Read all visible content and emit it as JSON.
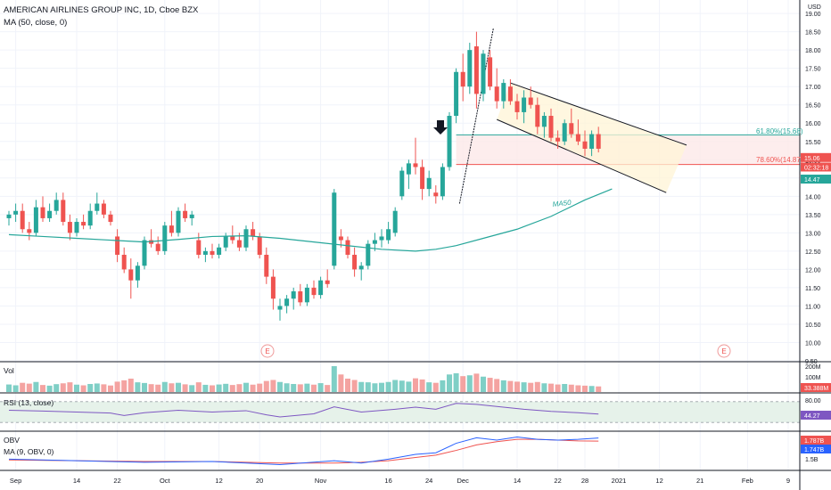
{
  "header": {
    "title": "AMERICAN AIRLINES GROUP INC, 1D, Cboe BZX",
    "ma_label": "MA (50, close, 0)",
    "currency": "USD"
  },
  "price_axis": {
    "ticks": [
      "19.00",
      "18.50",
      "18.00",
      "17.50",
      "17.00",
      "16.50",
      "16.00",
      "15.50",
      "15.00",
      "14.50",
      "14.00",
      "13.50",
      "13.00",
      "12.50",
      "12.00",
      "11.50",
      "11.00",
      "10.50",
      "10.00",
      "9.50"
    ],
    "badges": [
      {
        "text": "15.06",
        "color": "#ef5350",
        "price": 15.06
      },
      {
        "text": "02:32:18",
        "color": "#ef5350",
        "price": 14.8
      },
      {
        "text": "14.47",
        "color": "#26a69a",
        "price": 14.47
      }
    ]
  },
  "x_axis": {
    "ticks": [
      {
        "label": "Sep",
        "idx": 1
      },
      {
        "label": "14",
        "idx": 10
      },
      {
        "label": "22",
        "idx": 16
      },
      {
        "label": "Oct",
        "idx": 23
      },
      {
        "label": "12",
        "idx": 31
      },
      {
        "label": "20",
        "idx": 37
      },
      {
        "label": "Nov",
        "idx": 46
      },
      {
        "label": "16",
        "idx": 56
      },
      {
        "label": "24",
        "idx": 62
      },
      {
        "label": "Dec",
        "idx": 67
      },
      {
        "label": "14",
        "idx": 75
      },
      {
        "label": "22",
        "idx": 81
      },
      {
        "label": "28",
        "idx": 85
      },
      {
        "label": "2021",
        "idx": 90
      },
      {
        "label": "12",
        "idx": 96
      },
      {
        "label": "21",
        "idx": 102
      },
      {
        "label": "Feb",
        "idx": 109
      },
      {
        "label": "9",
        "idx": 115
      }
    ]
  },
  "annotations": {
    "fib_618": "61.80%(15.68)",
    "fib_786": "78.60%(14.87)",
    "ma_tag": "MA50",
    "earnings": [
      "E",
      "E"
    ]
  },
  "colors": {
    "up": "#26a69a",
    "down": "#ef5350",
    "ma": "#26a69a",
    "rsi": "#7e57c2",
    "obv": "#2962ff",
    "obv_ma": "#ef5350",
    "channel": "#131722"
  },
  "volume_panel": {
    "label": "Vol",
    "ticks": [
      "200M",
      "100M"
    ],
    "badge": "33.388M",
    "badge_color": "#ef5350"
  },
  "rsi_panel": {
    "label": "RSI (13, close)",
    "ticks": [
      "80.00"
    ],
    "badge": "44.27",
    "badge_color": "#7e57c2"
  },
  "obv_panel": {
    "label_obv": "OBV",
    "label_ma": "MA (9, OBV, 0)",
    "ticks": [
      "1.5B"
    ],
    "badge_obv": "1.787B",
    "badge_ma": "1.747B"
  },
  "chart_data": {
    "type": "candlestick",
    "title": "AMERICAN AIRLINES GROUP INC, 1D, Cboe BZX",
    "ylim": [
      9.5,
      19.1
    ],
    "x_range": [
      0,
      123
    ],
    "candles": [
      [
        0,
        13.4,
        13.6,
        13.2,
        13.5
      ],
      [
        1,
        13.5,
        13.8,
        13.3,
        13.6
      ],
      [
        2,
        13.6,
        13.8,
        13.0,
        13.1
      ],
      [
        3,
        13.1,
        13.3,
        12.8,
        13.0
      ],
      [
        4,
        13.0,
        13.9,
        12.9,
        13.7
      ],
      [
        5,
        13.7,
        14.0,
        13.3,
        13.4
      ],
      [
        6,
        13.4,
        13.8,
        13.3,
        13.6
      ],
      [
        7,
        13.6,
        14.1,
        13.5,
        13.9
      ],
      [
        8,
        13.9,
        14.1,
        13.2,
        13.3
      ],
      [
        9,
        13.3,
        13.5,
        12.8,
        13.0
      ],
      [
        10,
        13.0,
        13.4,
        12.9,
        13.3
      ],
      [
        11,
        13.3,
        13.5,
        13.1,
        13.2
      ],
      [
        12,
        13.2,
        13.8,
        13.1,
        13.6
      ],
      [
        13,
        13.6,
        14.1,
        13.5,
        13.8
      ],
      [
        14,
        13.8,
        13.9,
        13.4,
        13.5
      ],
      [
        15,
        13.5,
        13.6,
        13.2,
        13.3
      ],
      [
        16,
        12.9,
        13.1,
        12.2,
        12.4
      ],
      [
        17,
        12.4,
        12.6,
        11.9,
        12.0
      ],
      [
        18,
        12.0,
        12.3,
        11.2,
        11.7
      ],
      [
        19,
        11.7,
        12.2,
        11.5,
        12.1
      ],
      [
        20,
        12.1,
        12.9,
        12.0,
        12.8
      ],
      [
        21,
        12.8,
        13.1,
        12.6,
        12.7
      ],
      [
        22,
        12.7,
        12.9,
        12.4,
        12.5
      ],
      [
        23,
        12.5,
        13.3,
        12.4,
        13.2
      ],
      [
        24,
        13.2,
        13.6,
        12.9,
        13.0
      ],
      [
        25,
        13.0,
        13.7,
        12.9,
        13.6
      ],
      [
        26,
        13.6,
        13.8,
        13.3,
        13.4
      ],
      [
        27,
        13.4,
        13.6,
        13.2,
        13.5
      ],
      [
        28,
        12.8,
        13.0,
        12.3,
        12.4
      ],
      [
        29,
        12.4,
        12.6,
        12.2,
        12.5
      ],
      [
        30,
        12.5,
        12.7,
        12.3,
        12.4
      ],
      [
        31,
        12.4,
        12.7,
        12.3,
        12.6
      ],
      [
        32,
        12.6,
        13.0,
        12.5,
        12.9
      ],
      [
        33,
        12.9,
        13.2,
        12.7,
        12.8
      ],
      [
        34,
        12.8,
        13.0,
        12.5,
        12.6
      ],
      [
        35,
        12.6,
        13.2,
        12.5,
        13.1
      ],
      [
        36,
        13.1,
        13.3,
        12.8,
        12.9
      ],
      [
        37,
        12.9,
        13.0,
        12.3,
        12.4
      ],
      [
        38,
        12.4,
        12.6,
        11.6,
        11.8
      ],
      [
        39,
        11.8,
        12.0,
        10.9,
        11.2
      ],
      [
        40,
        10.9,
        11.2,
        10.6,
        11.0
      ],
      [
        41,
        11.0,
        11.3,
        10.8,
        11.2
      ],
      [
        42,
        11.2,
        11.5,
        10.9,
        11.4
      ],
      [
        43,
        11.4,
        11.6,
        11.0,
        11.1
      ],
      [
        44,
        11.1,
        11.6,
        11.0,
        11.5
      ],
      [
        45,
        11.5,
        11.7,
        11.2,
        11.3
      ],
      [
        46,
        11.3,
        11.8,
        11.2,
        11.7
      ],
      [
        47,
        11.7,
        12.0,
        11.5,
        11.6
      ],
      [
        48,
        12.1,
        14.2,
        12.0,
        14.1
      ],
      [
        49,
        12.9,
        13.1,
        12.6,
        12.8
      ],
      [
        50,
        12.8,
        12.9,
        12.3,
        12.4
      ],
      [
        51,
        12.4,
        12.6,
        11.8,
        12.0
      ],
      [
        52,
        12.0,
        12.2,
        11.7,
        12.1
      ],
      [
        53,
        12.1,
        12.8,
        12.0,
        12.7
      ],
      [
        54,
        12.7,
        13.0,
        12.5,
        12.8
      ],
      [
        55,
        12.8,
        13.1,
        12.6,
        12.9
      ],
      [
        56,
        12.8,
        13.3,
        12.7,
        13.1
      ],
      [
        57,
        13.0,
        13.7,
        12.9,
        13.6
      ],
      [
        58,
        14.0,
        14.8,
        13.9,
        14.7
      ],
      [
        59,
        14.6,
        15.0,
        14.2,
        14.9
      ],
      [
        60,
        14.9,
        15.6,
        14.6,
        14.8
      ],
      [
        61,
        14.8,
        15.0,
        13.9,
        14.2
      ],
      [
        62,
        14.2,
        14.7,
        14.0,
        14.5
      ],
      [
        63,
        14.1,
        14.3,
        13.8,
        14.0
      ],
      [
        64,
        14.0,
        14.9,
        13.9,
        14.8
      ],
      [
        65,
        14.8,
        16.3,
        14.7,
        16.2
      ],
      [
        66,
        16.2,
        17.5,
        16.0,
        17.4
      ],
      [
        67,
        17.4,
        17.9,
        16.6,
        17.0
      ],
      [
        68,
        17.0,
        18.2,
        16.8,
        18.0
      ],
      [
        69,
        18.1,
        18.5,
        16.4,
        16.8
      ],
      [
        70,
        16.8,
        18.0,
        16.6,
        17.9
      ],
      [
        71,
        17.8,
        18.0,
        16.9,
        17.0
      ],
      [
        72,
        17.0,
        17.5,
        16.4,
        16.6
      ],
      [
        73,
        16.6,
        17.2,
        16.4,
        17.1
      ],
      [
        74,
        17.0,
        17.2,
        16.5,
        16.6
      ],
      [
        75,
        16.6,
        16.8,
        16.1,
        16.3
      ],
      [
        76,
        16.3,
        16.9,
        16.0,
        16.7
      ],
      [
        77,
        16.7,
        17.0,
        16.4,
        16.5
      ],
      [
        78,
        16.5,
        16.7,
        15.7,
        15.9
      ],
      [
        79,
        15.9,
        16.3,
        15.6,
        16.2
      ],
      [
        80,
        16.2,
        16.4,
        15.5,
        15.6
      ],
      [
        81,
        15.6,
        15.8,
        15.3,
        15.5
      ],
      [
        82,
        15.5,
        16.1,
        15.4,
        16.0
      ],
      [
        83,
        16.0,
        16.4,
        15.6,
        15.7
      ],
      [
        84,
        15.7,
        16.1,
        15.4,
        15.5
      ],
      [
        85,
        15.5,
        15.8,
        15.1,
        15.3
      ],
      [
        86,
        15.3,
        15.8,
        15.1,
        15.7
      ],
      [
        87,
        15.7,
        15.9,
        15.2,
        15.3
      ]
    ],
    "ma50": [
      [
        0,
        12.95
      ],
      [
        5,
        12.9
      ],
      [
        10,
        12.85
      ],
      [
        15,
        12.8
      ],
      [
        20,
        12.75
      ],
      [
        25,
        12.82
      ],
      [
        30,
        12.9
      ],
      [
        35,
        12.92
      ],
      [
        40,
        12.85
      ],
      [
        45,
        12.75
      ],
      [
        50,
        12.65
      ],
      [
        55,
        12.55
      ],
      [
        60,
        12.5
      ],
      [
        63,
        12.55
      ],
      [
        66,
        12.65
      ],
      [
        70,
        12.85
      ],
      [
        75,
        13.1
      ],
      [
        80,
        13.45
      ],
      [
        85,
        13.9
      ],
      [
        89,
        14.2
      ]
    ],
    "fib_levels": [
      {
        "label": "61.80%(15.68)",
        "value": 15.68
      },
      {
        "label": "78.60%(14.87)",
        "value": 14.87
      }
    ],
    "volume_in_millions": [
      [
        0,
        45
      ],
      [
        1,
        40
      ],
      [
        2,
        55
      ],
      [
        3,
        50
      ],
      [
        4,
        60
      ],
      [
        5,
        42
      ],
      [
        6,
        38
      ],
      [
        7,
        47
      ],
      [
        8,
        52
      ],
      [
        9,
        58
      ],
      [
        10,
        44
      ],
      [
        11,
        40
      ],
      [
        12,
        48
      ],
      [
        13,
        51
      ],
      [
        14,
        46
      ],
      [
        15,
        39
      ],
      [
        16,
        62
      ],
      [
        17,
        70
      ],
      [
        18,
        80
      ],
      [
        19,
        58
      ],
      [
        20,
        54
      ],
      [
        21,
        47
      ],
      [
        22,
        44
      ],
      [
        23,
        60
      ],
      [
        24,
        52
      ],
      [
        25,
        55
      ],
      [
        26,
        46
      ],
      [
        27,
        41
      ],
      [
        28,
        58
      ],
      [
        29,
        43
      ],
      [
        30,
        40
      ],
      [
        31,
        45
      ],
      [
        32,
        49
      ],
      [
        33,
        42
      ],
      [
        34,
        47
      ],
      [
        35,
        55
      ],
      [
        36,
        44
      ],
      [
        37,
        50
      ],
      [
        38,
        66
      ],
      [
        39,
        72
      ],
      [
        40,
        60
      ],
      [
        41,
        52
      ],
      [
        42,
        48
      ],
      [
        43,
        46
      ],
      [
        44,
        50
      ],
      [
        45,
        44
      ],
      [
        46,
        53
      ],
      [
        47,
        42
      ],
      [
        48,
        155
      ],
      [
        49,
        105
      ],
      [
        50,
        80
      ],
      [
        51,
        72
      ],
      [
        52,
        60
      ],
      [
        53,
        58
      ],
      [
        54,
        52
      ],
      [
        55,
        55
      ],
      [
        56,
        60
      ],
      [
        57,
        72
      ],
      [
        58,
        68
      ],
      [
        59,
        62
      ],
      [
        60,
        82
      ],
      [
        61,
        75
      ],
      [
        62,
        58
      ],
      [
        63,
        55
      ],
      [
        64,
        70
      ],
      [
        65,
        105
      ],
      [
        66,
        112
      ],
      [
        67,
        95
      ],
      [
        68,
        100
      ],
      [
        69,
        110
      ],
      [
        70,
        92
      ],
      [
        71,
        85
      ],
      [
        72,
        78
      ],
      [
        73,
        70
      ],
      [
        74,
        66
      ],
      [
        75,
        62
      ],
      [
        76,
        58
      ],
      [
        77,
        55
      ],
      [
        78,
        60
      ],
      [
        79,
        52
      ],
      [
        80,
        50
      ],
      [
        81,
        45
      ],
      [
        82,
        48
      ],
      [
        83,
        44
      ],
      [
        84,
        40
      ],
      [
        85,
        38
      ],
      [
        86,
        36
      ],
      [
        87,
        33.4
      ]
    ],
    "rsi": [
      [
        0,
        55
      ],
      [
        5,
        53
      ],
      [
        10,
        50
      ],
      [
        15,
        47
      ],
      [
        17,
        40
      ],
      [
        20,
        48
      ],
      [
        25,
        55
      ],
      [
        30,
        50
      ],
      [
        35,
        54
      ],
      [
        38,
        42
      ],
      [
        40,
        36
      ],
      [
        45,
        45
      ],
      [
        48,
        65
      ],
      [
        52,
        50
      ],
      [
        57,
        58
      ],
      [
        60,
        64
      ],
      [
        63,
        58
      ],
      [
        66,
        75
      ],
      [
        69,
        72
      ],
      [
        72,
        66
      ],
      [
        76,
        58
      ],
      [
        80,
        52
      ],
      [
        84,
        48
      ],
      [
        87,
        44.27
      ]
    ],
    "obv_billion": [
      [
        0,
        1.52
      ],
      [
        10,
        1.5
      ],
      [
        20,
        1.48
      ],
      [
        30,
        1.49
      ],
      [
        40,
        1.45
      ],
      [
        48,
        1.5
      ],
      [
        52,
        1.47
      ],
      [
        56,
        1.52
      ],
      [
        60,
        1.58
      ],
      [
        63,
        1.6
      ],
      [
        66,
        1.72
      ],
      [
        69,
        1.79
      ],
      [
        72,
        1.76
      ],
      [
        75,
        1.8
      ],
      [
        78,
        1.77
      ],
      [
        81,
        1.76
      ],
      [
        84,
        1.77
      ],
      [
        87,
        1.787
      ]
    ],
    "obv_ma_billion": [
      [
        0,
        1.51
      ],
      [
        10,
        1.5
      ],
      [
        20,
        1.49
      ],
      [
        30,
        1.49
      ],
      [
        40,
        1.47
      ],
      [
        48,
        1.47
      ],
      [
        52,
        1.48
      ],
      [
        56,
        1.5
      ],
      [
        60,
        1.54
      ],
      [
        63,
        1.57
      ],
      [
        66,
        1.63
      ],
      [
        69,
        1.7
      ],
      [
        72,
        1.74
      ],
      [
        75,
        1.77
      ],
      [
        78,
        1.77
      ],
      [
        81,
        1.76
      ],
      [
        84,
        1.75
      ],
      [
        87,
        1.747
      ]
    ]
  }
}
